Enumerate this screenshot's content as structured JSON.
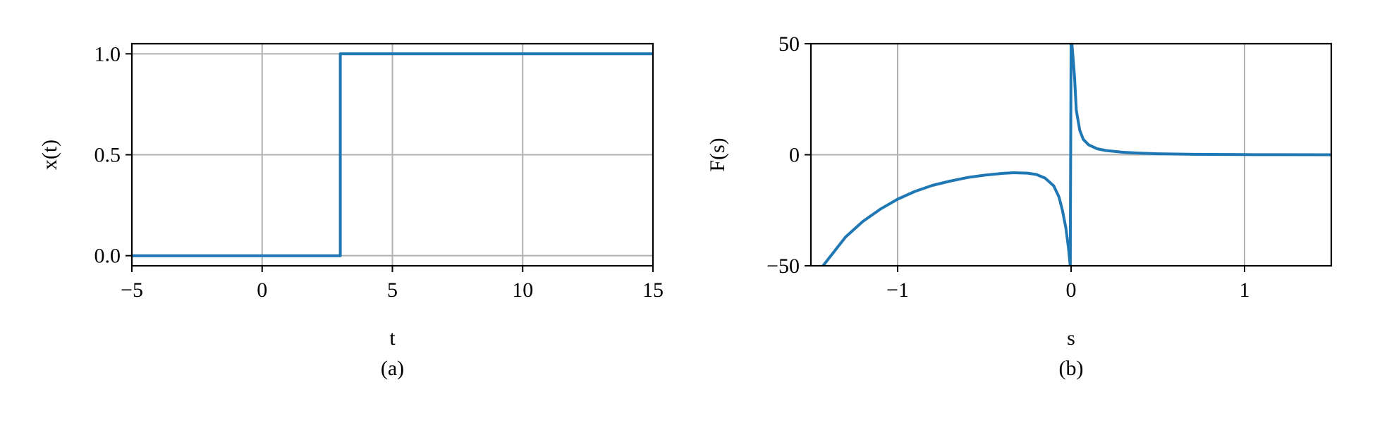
{
  "chart_data": [
    {
      "type": "line",
      "caption": "(a)",
      "xlabel": "t",
      "ylabel": "x(t)",
      "xlim": [
        -5,
        15
      ],
      "ylim": [
        -0.05,
        1.05
      ],
      "xticks": [
        -5,
        0,
        5,
        10,
        15
      ],
      "xtick_labels": [
        "−5",
        "0",
        "5",
        "10",
        "15"
      ],
      "yticks": [
        0.0,
        0.5,
        1.0
      ],
      "ytick_labels": [
        "0.0",
        "0.5",
        "1.0"
      ],
      "grid": true,
      "series": [
        {
          "color": "#1f77b4",
          "x": [
            -5,
            3,
            3,
            15
          ],
          "y": [
            0,
            0,
            1,
            1
          ]
        }
      ]
    },
    {
      "type": "line",
      "caption": "(b)",
      "xlabel": "s",
      "ylabel": "F(s)",
      "xlim": [
        -1.5,
        1.5
      ],
      "ylim": [
        -50,
        50
      ],
      "xticks": [
        -1,
        0,
        1
      ],
      "xtick_labels": [
        "−1",
        "0",
        "1"
      ],
      "yticks": [
        -50,
        0,
        50
      ],
      "ytick_labels": [
        "−50",
        "0",
        "50"
      ],
      "grid": true,
      "series": [
        {
          "color": "#1f77b4",
          "x": [
            -1.43,
            -1.3,
            -1.2,
            -1.1,
            -1.0,
            -0.9,
            -0.8,
            -0.7,
            -0.6,
            -0.5,
            -0.4,
            -0.33,
            -0.25,
            -0.2,
            -0.15,
            -0.1,
            -0.07,
            -0.05,
            -0.03,
            -0.015,
            -0.005,
            0.0,
            0.005,
            0.02,
            0.03,
            0.05,
            0.07,
            0.1,
            0.15,
            0.2,
            0.3,
            0.4,
            0.5,
            0.7,
            1.0,
            1.2,
            1.5
          ],
          "y": [
            -50,
            -37,
            -30,
            -24.5,
            -20,
            -16.5,
            -13.8,
            -11.9,
            -10.3,
            -9.2,
            -8.4,
            -8.1,
            -8.3,
            -8.9,
            -10.5,
            -14,
            -19,
            -25,
            -33,
            -42,
            -50,
            50,
            50,
            35,
            20,
            11,
            7,
            4.5,
            2.7,
            1.9,
            1.1,
            0.7,
            0.45,
            0.2,
            0.05,
            0.02,
            0.0
          ]
        }
      ]
    }
  ]
}
